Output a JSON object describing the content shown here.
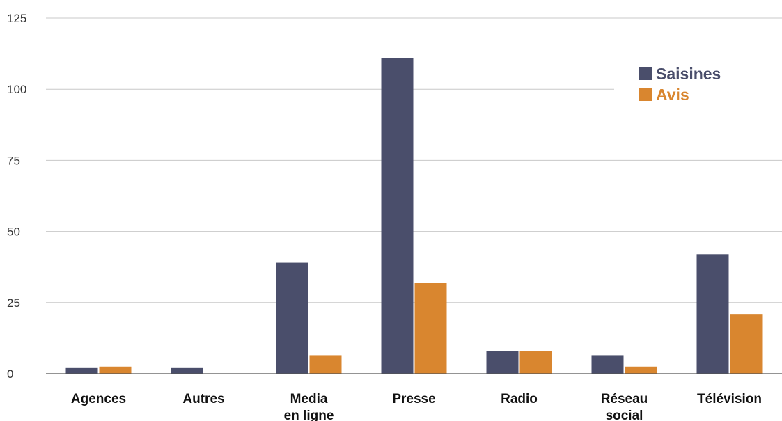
{
  "chart_data": {
    "type": "bar",
    "categories": [
      [
        "Agences"
      ],
      [
        "Autres"
      ],
      [
        "Media",
        "en ligne"
      ],
      [
        "Presse"
      ],
      [
        "Radio"
      ],
      [
        "Réseau",
        "social"
      ],
      [
        "Télévision"
      ]
    ],
    "series": [
      {
        "name": "Saisines",
        "color": "#4a4e6b",
        "values": [
          2,
          2,
          39,
          111,
          8,
          6.5,
          42
        ]
      },
      {
        "name": "Avis",
        "color": "#d9862f",
        "values": [
          2.5,
          0,
          6.5,
          32,
          8,
          2.5,
          21
        ]
      }
    ],
    "yticks": [
      0,
      25,
      50,
      75,
      100,
      125
    ],
    "ylim": [
      0,
      125
    ],
    "grid": true,
    "legend": "top-right",
    "title": "",
    "xlabel": "",
    "ylabel": ""
  }
}
